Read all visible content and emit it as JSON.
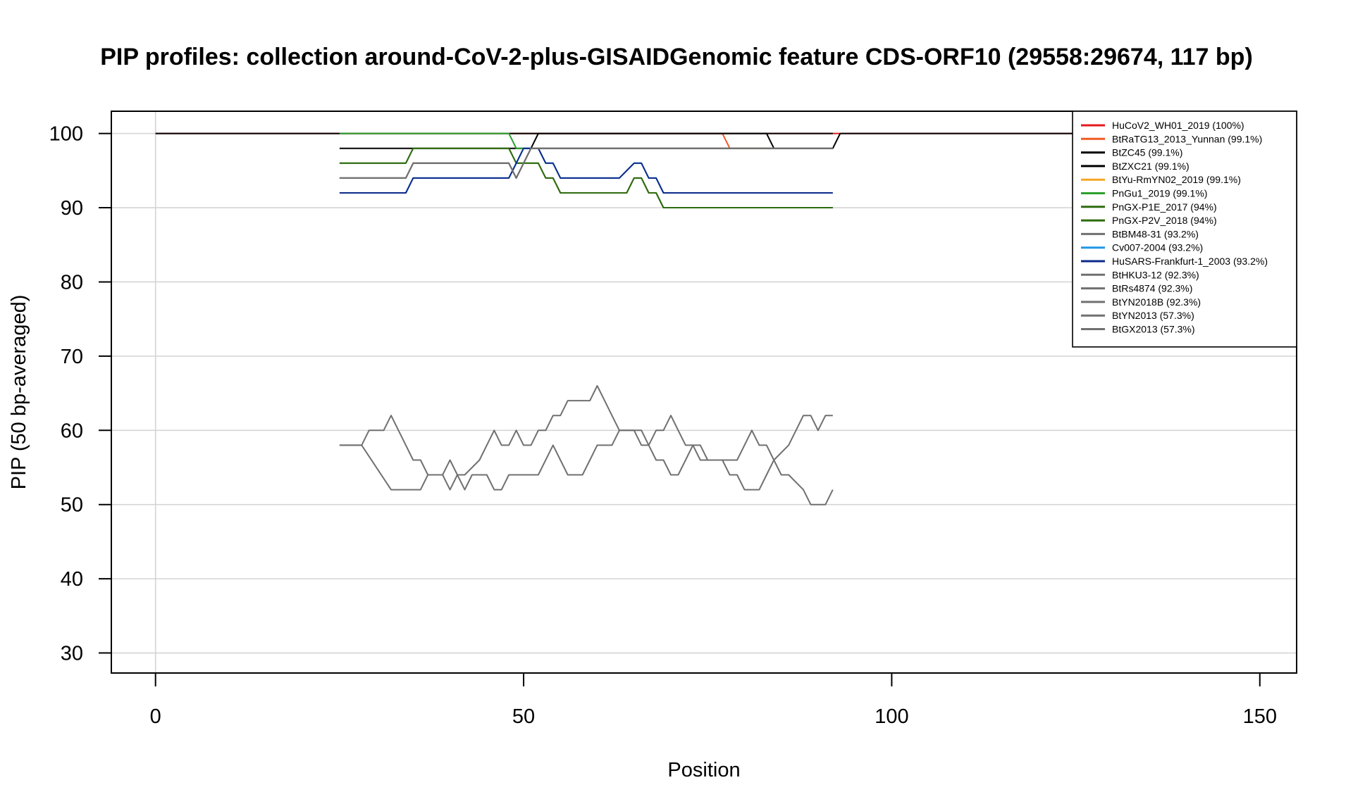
{
  "chart_data": {
    "type": "line",
    "title": "PIP profiles: collection around-CoV-2-plus-GISAIDGenomic feature CDS-ORF10 (29558:29674, 117 bp)",
    "xlabel": "Position",
    "ylabel": "PIP (50 bp-averaged)",
    "xlim": [
      -6,
      155
    ],
    "ylim": [
      27.3,
      103
    ],
    "xticks": [
      0,
      50,
      100,
      150
    ],
    "yticks": [
      30,
      40,
      50,
      60,
      70,
      80,
      90,
      100
    ],
    "grid": true,
    "legend_position": "top-right",
    "series": [
      {
        "name": "HuCoV2_WH01_2019 (100%)",
        "color": "#e41a1c",
        "x": [
          0,
          150
        ],
        "y": [
          100,
          100
        ]
      },
      {
        "name": "BtRaTG13_2013_Yunnan (99.1%)",
        "color": "#f05a24",
        "x": [
          25,
          77,
          78,
          92
        ],
        "y": [
          100,
          100,
          98,
          98
        ]
      },
      {
        "name": "BtZC45 (99.1%)",
        "color": "#000000",
        "x": [
          0,
          25,
          83,
          84,
          92,
          93,
          150
        ],
        "y": [
          100,
          100,
          100,
          98,
          98,
          100,
          100
        ]
      },
      {
        "name": "BtZXC21 (99.1%)",
        "color": "#000000",
        "x": [
          25,
          51,
          52,
          92
        ],
        "y": [
          98,
          98,
          100,
          100
        ]
      },
      {
        "name": "BtYu-RmYN02_2019 (99.1%)",
        "color": "#f5a623",
        "x": [],
        "y": []
      },
      {
        "name": "PnGu1_2019 (99.1%)",
        "color": "#2ca02c",
        "x": [
          25,
          48,
          49,
          92
        ],
        "y": [
          100,
          100,
          98,
          98
        ]
      },
      {
        "name": "PnGX-P1E_2017 (94%)",
        "color": "#2e6b0e",
        "x": [
          25,
          34,
          35,
          48,
          49,
          50,
          52,
          53,
          54,
          55,
          63,
          64,
          65,
          66,
          67,
          68,
          69,
          92
        ],
        "y": [
          96,
          96,
          98,
          98,
          96,
          96,
          96,
          94,
          94,
          92,
          92,
          92,
          94,
          94,
          92,
          92,
          90,
          90
        ]
      },
      {
        "name": "PnGX-P2V_2018 (94%)",
        "color": "#2e6b0e",
        "x": [
          25,
          34,
          35,
          48,
          49,
          50,
          52,
          53,
          54,
          55,
          63,
          64,
          65,
          66,
          67,
          68,
          69,
          92
        ],
        "y": [
          96,
          96,
          98,
          98,
          96,
          96,
          96,
          94,
          94,
          92,
          92,
          92,
          94,
          94,
          92,
          92,
          90,
          90
        ]
      },
      {
        "name": "BtBM48-31 (93.2%)",
        "color": "#707070",
        "x": [
          25,
          34,
          35,
          48,
          49,
          50,
          51,
          92
        ],
        "y": [
          94,
          94,
          96,
          96,
          94,
          96,
          98,
          98
        ]
      },
      {
        "name": "Cv007-2004 (93.2%)",
        "color": "#2196e8",
        "x": [
          25,
          34,
          35,
          48,
          49,
          50,
          52,
          53,
          54,
          55,
          62,
          63,
          65,
          66,
          67,
          68,
          69,
          92
        ],
        "y": [
          92,
          92,
          94,
          94,
          96,
          98,
          98,
          96,
          96,
          94,
          94,
          94,
          96,
          96,
          94,
          94,
          92,
          92
        ]
      },
      {
        "name": "HuSARS-Frankfurt-1_2003 (93.2%)",
        "color": "#0a2a8a",
        "x": [
          25,
          34,
          35,
          48,
          49,
          50,
          52,
          53,
          54,
          55,
          62,
          63,
          65,
          66,
          67,
          68,
          69,
          92
        ],
        "y": [
          92,
          92,
          94,
          94,
          96,
          98,
          98,
          96,
          96,
          94,
          94,
          94,
          96,
          96,
          94,
          94,
          92,
          92
        ]
      },
      {
        "name": "BtHKU3-12 (92.3%)",
        "color": "#707070",
        "x": [
          25,
          34,
          35,
          48,
          49,
          50,
          51,
          92
        ],
        "y": [
          94,
          94,
          96,
          96,
          94,
          96,
          98,
          98
        ]
      },
      {
        "name": "BtRs4874 (92.3%)",
        "color": "#707070",
        "x": [
          25,
          34,
          35,
          48,
          49,
          50,
          51,
          92
        ],
        "y": [
          94,
          94,
          96,
          96,
          94,
          96,
          98,
          98
        ]
      },
      {
        "name": "BtYN2018B (92.3%)",
        "color": "#707070",
        "x": [
          25,
          34,
          35,
          48,
          49,
          50,
          51,
          92
        ],
        "y": [
          94,
          94,
          96,
          96,
          94,
          96,
          98,
          98
        ]
      },
      {
        "name": "BtYN2013 (57.3%)",
        "color": "#707070",
        "x": [
          25,
          28,
          29,
          31,
          32,
          34,
          35,
          36,
          37,
          38,
          39,
          40,
          41,
          42,
          44,
          45,
          46,
          47,
          48,
          49,
          50,
          51,
          52,
          53,
          54,
          55,
          56,
          58,
          59,
          60,
          61,
          62,
          63,
          64,
          65,
          66,
          67,
          68,
          69,
          70,
          71,
          72,
          73,
          74,
          76,
          77,
          78,
          79,
          80,
          81,
          82,
          83,
          84,
          86,
          87,
          88,
          89,
          90,
          91,
          92
        ],
        "y": [
          58,
          58,
          60,
          60,
          62,
          58,
          56,
          56,
          54,
          54,
          54,
          52,
          54,
          54,
          56,
          58,
          60,
          58,
          58,
          60,
          58,
          58,
          60,
          60,
          62,
          62,
          64,
          64,
          64,
          66,
          64,
          62,
          60,
          60,
          60,
          60,
          58,
          60,
          60,
          62,
          60,
          58,
          58,
          56,
          56,
          56,
          54,
          54,
          52,
          52,
          52,
          54,
          56,
          58,
          60,
          62,
          62,
          60,
          62,
          62
        ]
      },
      {
        "name": "BtGX2013 (57.3%)",
        "color": "#707070",
        "x": [
          25,
          28,
          32,
          35,
          36,
          37,
          38,
          39,
          40,
          41,
          42,
          43,
          45,
          46,
          47,
          48,
          50,
          51,
          52,
          54,
          56,
          58,
          59,
          60,
          62,
          63,
          65,
          66,
          67,
          68,
          69,
          70,
          71,
          72,
          73,
          74,
          75,
          76,
          77,
          78,
          79,
          80,
          81,
          82,
          83,
          84,
          85,
          86,
          88,
          89,
          90,
          91,
          92
        ],
        "y": [
          58,
          58,
          52,
          52,
          52,
          54,
          54,
          54,
          56,
          54,
          52,
          54,
          54,
          52,
          52,
          54,
          54,
          54,
          54,
          58,
          54,
          54,
          56,
          58,
          58,
          60,
          60,
          58,
          58,
          56,
          56,
          54,
          54,
          56,
          58,
          58,
          56,
          56,
          56,
          56,
          56,
          58,
          60,
          58,
          58,
          56,
          54,
          54,
          52,
          50,
          50,
          50,
          52
        ]
      }
    ]
  }
}
